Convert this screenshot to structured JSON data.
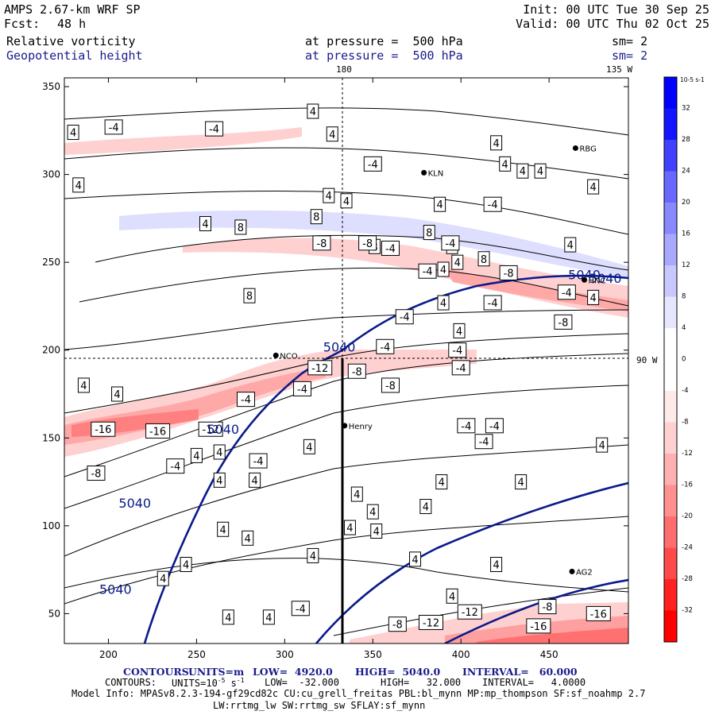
{
  "header": {
    "model": "AMPS 2.67-km WRF SP",
    "fcst_label": "Fcst:",
    "fcst_value": "48 h",
    "init": "Init: 00 UTC Tue 30 Sep 25",
    "valid": "Valid: 00 UTC Thu 02 Oct 25",
    "field1": "Relative vorticity",
    "field2": "Geopotential height",
    "level1": "at pressure =  500 hPa",
    "level2": "at pressure =  500 hPa",
    "sm1": "sm= 2",
    "sm2": "sm= 2"
  },
  "map_labels": {
    "lon_180": "180",
    "lon_135w": "135 W",
    "lon_90w": "90 W"
  },
  "stations": [
    "NCO",
    "Henry",
    "RBG",
    "KLN",
    "AG2",
    "HNC"
  ],
  "colors": {
    "height_contour": "#0a1a8a",
    "neg_vorticity": "#ff0000",
    "pos_vorticity": "#0000ff",
    "footer_text": "#1a1a8c"
  },
  "chart_data": {
    "type": "heatmap",
    "title": "Relative vorticity and Geopotential height at 500 hPa",
    "xlim": [
      175,
      495
    ],
    "ylim": [
      33,
      355
    ],
    "xticks": [
      200,
      250,
      300,
      350,
      400,
      450
    ],
    "yticks": [
      50,
      100,
      150,
      200,
      250,
      300,
      350
    ],
    "colorbar": {
      "unit": "10-5 s-1",
      "levels": [
        -32,
        -28,
        -24,
        -20,
        -16,
        -12,
        -8,
        -4,
        0,
        4,
        8,
        12,
        16,
        20,
        24,
        28,
        32
      ],
      "labels": [
        "32",
        "28",
        "24",
        "20",
        "16",
        "12",
        "8",
        "4",
        "0",
        "-4",
        "-8",
        "-12",
        "-16",
        "-20",
        "-24",
        "-28",
        "-32"
      ],
      "colors": [
        "#ff0000",
        "#ff2020",
        "#ff4a4a",
        "#ff6e6e",
        "#ff9090",
        "#ffb0b0",
        "#ffd0d0",
        "#ffeaea",
        "#ffffff",
        "#ffffff",
        "#e6e6ff",
        "#c8c8ff",
        "#a8a8ff",
        "#8888ff",
        "#6868ff",
        "#4040ff",
        "#1414ff",
        "#0000ff"
      ]
    },
    "height_contours": {
      "units": "m",
      "low": 4920.0,
      "high": 5040.0,
      "interval": 60.0,
      "labels": [
        {
          "text": "5040",
          "x": 331,
          "y": 202
        },
        {
          "text": "5040",
          "x": 265,
          "y": 155
        },
        {
          "text": "5040",
          "x": 215,
          "y": 113
        },
        {
          "text": "5040",
          "x": 204,
          "y": 64
        },
        {
          "text": "5040",
          "x": 470,
          "y": 243
        },
        {
          "text": "5040",
          "x": 482,
          "y": 241
        }
      ]
    },
    "vorticity_contour_labels": [
      {
        "t": "4",
        "x": 180,
        "y": 324
      },
      {
        "t": "4",
        "x": 183,
        "y": 294
      },
      {
        "t": "4",
        "x": 205,
        "y": 175
      },
      {
        "t": "-4",
        "x": 203,
        "y": 327
      },
      {
        "t": "-4",
        "x": 260,
        "y": 326
      },
      {
        "t": "8",
        "x": 275,
        "y": 270
      },
      {
        "t": "4",
        "x": 255,
        "y": 272
      },
      {
        "t": "8",
        "x": 382,
        "y": 267
      },
      {
        "t": "8",
        "x": 318,
        "y": 276
      },
      {
        "t": "8",
        "x": 280,
        "y": 231
      },
      {
        "t": "4",
        "x": 335,
        "y": 285
      },
      {
        "t": "4",
        "x": 395,
        "y": 259
      },
      {
        "t": "-4",
        "x": 381,
        "y": 245
      },
      {
        "t": "-8",
        "x": 321,
        "y": 261
      },
      {
        "t": "8",
        "x": 351,
        "y": 259
      },
      {
        "t": "-8",
        "x": 347,
        "y": 261
      },
      {
        "t": "-4",
        "x": 360,
        "y": 258
      },
      {
        "t": "4",
        "x": 398,
        "y": 250
      },
      {
        "t": "-4",
        "x": 394,
        "y": 261
      },
      {
        "t": "8",
        "x": 413,
        "y": 252
      },
      {
        "t": "-4",
        "x": 368,
        "y": 219
      },
      {
        "t": "4",
        "x": 390,
        "y": 227
      },
      {
        "t": "4",
        "x": 390,
        "y": 246
      },
      {
        "t": "-4",
        "x": 418,
        "y": 227
      },
      {
        "t": "-8",
        "x": 458,
        "y": 216
      },
      {
        "t": "-4",
        "x": 460,
        "y": 233
      },
      {
        "t": "-8",
        "x": 427,
        "y": 244
      },
      {
        "t": "4",
        "x": 399,
        "y": 211
      },
      {
        "t": "4",
        "x": 475,
        "y": 230
      },
      {
        "t": "-4",
        "x": 357,
        "y": 202
      },
      {
        "t": "-4",
        "x": 398,
        "y": 200
      },
      {
        "t": "-4",
        "x": 400,
        "y": 190
      },
      {
        "t": "-8",
        "x": 341,
        "y": 188
      },
      {
        "t": "-8",
        "x": 360,
        "y": 180
      },
      {
        "t": "-4",
        "x": 310,
        "y": 178
      },
      {
        "t": "-12",
        "x": 320,
        "y": 190
      },
      {
        "t": "-4",
        "x": 278,
        "y": 172
      },
      {
        "t": "4",
        "x": 186,
        "y": 180
      },
      {
        "t": "-16",
        "x": 197,
        "y": 155
      },
      {
        "t": "-16",
        "x": 228,
        "y": 154
      },
      {
        "t": "-12",
        "x": 258,
        "y": 155
      },
      {
        "t": "-4",
        "x": 285,
        "y": 137
      },
      {
        "t": "4",
        "x": 250,
        "y": 140
      },
      {
        "t": "4",
        "x": 263,
        "y": 142
      },
      {
        "t": "4",
        "x": 314,
        "y": 145
      },
      {
        "t": "-8",
        "x": 193,
        "y": 130
      },
      {
        "t": "-4",
        "x": 238,
        "y": 134
      },
      {
        "t": "-4",
        "x": 413,
        "y": 148
      },
      {
        "t": "-4",
        "x": 403,
        "y": 157
      },
      {
        "t": "-4",
        "x": 419,
        "y": 157
      },
      {
        "t": "4",
        "x": 389,
        "y": 125
      },
      {
        "t": "4",
        "x": 341,
        "y": 118
      },
      {
        "t": "4",
        "x": 337,
        "y": 99
      },
      {
        "t": "4",
        "x": 352,
        "y": 97
      },
      {
        "t": "4",
        "x": 380,
        "y": 111
      },
      {
        "t": "4",
        "x": 434,
        "y": 125
      },
      {
        "t": "4",
        "x": 263,
        "y": 126
      },
      {
        "t": "4",
        "x": 283,
        "y": 126
      },
      {
        "t": "4",
        "x": 265,
        "y": 98
      },
      {
        "t": "4",
        "x": 279,
        "y": 93
      },
      {
        "t": "4",
        "x": 244,
        "y": 78
      },
      {
        "t": "4",
        "x": 231,
        "y": 70
      },
      {
        "t": "4",
        "x": 316,
        "y": 83
      },
      {
        "t": "4",
        "x": 291,
        "y": 48
      },
      {
        "t": "4",
        "x": 268,
        "y": 48
      },
      {
        "t": "-4",
        "x": 309,
        "y": 53
      },
      {
        "t": "4",
        "x": 395,
        "y": 60
      },
      {
        "t": "-8",
        "x": 364,
        "y": 44
      },
      {
        "t": "-12",
        "x": 383,
        "y": 45
      },
      {
        "t": "-12",
        "x": 405,
        "y": 51
      },
      {
        "t": "-8",
        "x": 449,
        "y": 54
      },
      {
        "t": "-16",
        "x": 478,
        "y": 50
      },
      {
        "t": "-16",
        "x": 444,
        "y": 43
      },
      {
        "t": "4",
        "x": 480,
        "y": 146
      },
      {
        "t": "4",
        "x": 420,
        "y": 78
      },
      {
        "t": "4",
        "x": 374,
        "y": 81
      },
      {
        "t": "4",
        "x": 350,
        "y": 108
      },
      {
        "t": "4",
        "x": 316,
        "y": 336
      },
      {
        "t": "4",
        "x": 327,
        "y": 323
      },
      {
        "t": "4",
        "x": 325,
        "y": 288
      },
      {
        "t": "-4",
        "x": 350,
        "y": 306
      },
      {
        "t": "4",
        "x": 388,
        "y": 283
      },
      {
        "t": "4",
        "x": 425,
        "y": 306
      },
      {
        "t": "4",
        "x": 420,
        "y": 318
      },
      {
        "t": "-4",
        "x": 418,
        "y": 283
      },
      {
        "t": "4",
        "x": 435,
        "y": 302
      },
      {
        "t": "4",
        "x": 445,
        "y": 302
      },
      {
        "t": "4",
        "x": 462,
        "y": 260
      },
      {
        "t": "4",
        "x": 475,
        "y": 293
      }
    ],
    "stations": [
      {
        "name": "NCO",
        "x": 295,
        "y": 197
      },
      {
        "name": "Henry",
        "x": 334,
        "y": 157
      },
      {
        "name": "RBG",
        "x": 465,
        "y": 315
      },
      {
        "name": "KLN",
        "x": 379,
        "y": 301
      },
      {
        "name": "AG2",
        "x": 463,
        "y": 74
      },
      {
        "name": "HNC",
        "x": 470,
        "y": 240
      }
    ],
    "meridian_180_x": 331,
    "parallel_90w_y": 196,
    "section_line": {
      "x": 331,
      "y0": 196,
      "y1": 33
    }
  },
  "footer": {
    "c1_label": "CONTOURS:",
    "c1_units": "UNITS=m",
    "c1_low": "LOW=  4920.0",
    "c1_high": "HIGH=  5040.0",
    "c1_interval": "INTERVAL=   60.000",
    "c2_label": "CONTOURS:",
    "c2_units_prefix": "UNITS=10",
    "c2_units_exp": "-5",
    "c2_units_suffix": " s",
    "c2_units_exp2": "-1",
    "c2_low": "LOW=  -32.000",
    "c2_high": "HIGH=   32.000",
    "c2_interval": "INTERVAL=   4.0000",
    "model_info": "Model Info: MPASv8.2.3-194-gf29cd82c CU:cu_grell_freitas PBL:bl_mynn MP:mp_thompson SF:sf_noahmp 2.7",
    "model_info2": "LW:rrtmg_lw SW:rrtmg_sw SFLAY:sf_mynn"
  }
}
